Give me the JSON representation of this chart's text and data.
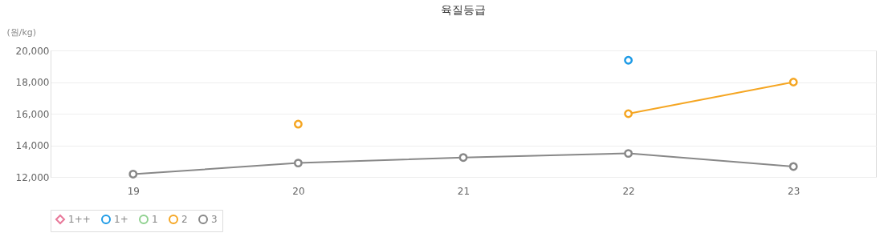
{
  "chart_data": {
    "type": "line",
    "title": "육질등급",
    "ylabel": "(원/kg)",
    "categories": [
      "19",
      "20",
      "21",
      "22",
      "23"
    ],
    "ylim": [
      12000,
      20000
    ],
    "yticks": [
      {
        "value": 12000,
        "label": "12,000"
      },
      {
        "value": 14000,
        "label": "14,000"
      },
      {
        "value": 16000,
        "label": "16,000"
      },
      {
        "value": 18000,
        "label": "18,000"
      },
      {
        "value": 20000,
        "label": "20,000"
      }
    ],
    "grid": "y",
    "legend": "bottom",
    "marker": "circle",
    "line_style": "solid",
    "series": [
      {
        "name": "1++",
        "color": "#e8799a",
        "marker": "diamond",
        "values": [
          null,
          null,
          null,
          null,
          null
        ]
      },
      {
        "name": "1+",
        "color": "#1e9be6",
        "values": [
          null,
          null,
          null,
          19380,
          null
        ]
      },
      {
        "name": "1",
        "color": "#8fd18f",
        "values": [
          null,
          null,
          null,
          null,
          null
        ]
      },
      {
        "name": "2",
        "color": "#f5a623",
        "values": [
          null,
          15340,
          null,
          16000,
          18000
        ]
      },
      {
        "name": "3",
        "color": "#888888",
        "values": [
          12180,
          12880,
          13230,
          13490,
          12660
        ]
      }
    ]
  }
}
